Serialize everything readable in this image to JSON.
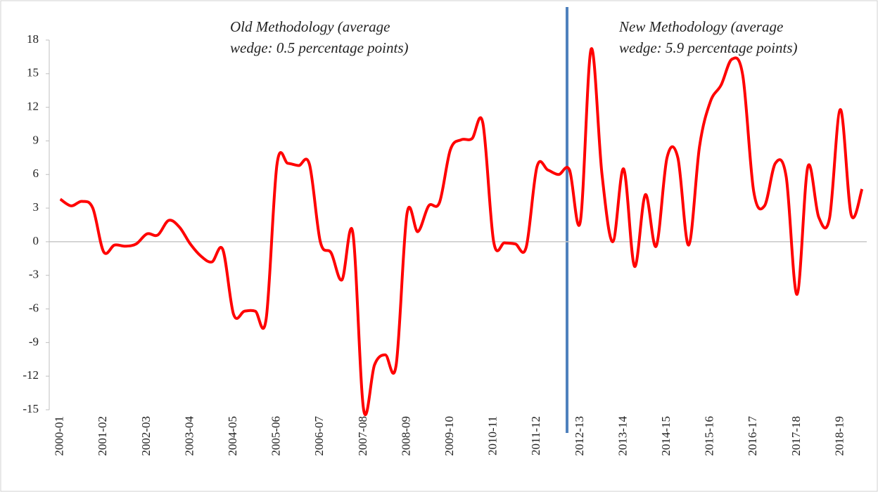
{
  "chart_data": {
    "type": "line",
    "categories": [
      "2000-01",
      null,
      null,
      null,
      "2001-02",
      null,
      null,
      null,
      "2002-03",
      null,
      null,
      null,
      "2003-04",
      null,
      null,
      null,
      "2004-05",
      null,
      null,
      null,
      "2005-06",
      null,
      null,
      null,
      "2006-07",
      null,
      null,
      null,
      "2007-08",
      null,
      null,
      null,
      "2008-09",
      null,
      null,
      null,
      "2009-10",
      null,
      null,
      null,
      "2010-11",
      null,
      null,
      null,
      "2011-12",
      null,
      null,
      null,
      "2012-13",
      null,
      null,
      null,
      "2013-14",
      null,
      null,
      null,
      "2014-15",
      null,
      null,
      null,
      "2015-16",
      null,
      null,
      null,
      "2016-17",
      null,
      null,
      null,
      "2017-18",
      null,
      null,
      null,
      "2018-19",
      null,
      null
    ],
    "series": [
      {
        "color": "#ff0000",
        "values": [
          3.8,
          3.2,
          3.6,
          3.0,
          -0.9,
          -0.3,
          -0.4,
          -0.2,
          0.7,
          0.6,
          1.9,
          1.3,
          -0.2,
          -1.3,
          -1.8,
          -0.7,
          -6.5,
          -6.2,
          -6.2,
          -6.9,
          6.9,
          7.0,
          6.8,
          6.9,
          0.0,
          -1.0,
          -3.4,
          0.8,
          -15.0,
          -11.0,
          -10.1,
          -11.0,
          2.5,
          0.9,
          3.2,
          3.5,
          8.2,
          9.1,
          9.2,
          10.6,
          0.0,
          -0.1,
          -0.2,
          -0.5,
          6.7,
          6.4,
          6.0,
          6.4,
          1.8,
          17.2,
          6.0,
          0.0,
          6.5,
          -2.2,
          4.2,
          -0.4,
          7.5,
          7.5,
          -0.3,
          8.5,
          12.5,
          14.0,
          16.3,
          14.8,
          4.5,
          3.2,
          7.0,
          5.8,
          -4.7,
          6.7,
          2.2,
          2.1,
          11.8,
          2.4,
          4.7
        ]
      }
    ],
    "ylim": [
      -15,
      18
    ],
    "yticks": [
      -15,
      -12,
      -9,
      -6,
      -3,
      0,
      3,
      6,
      9,
      12,
      15,
      18
    ],
    "smooth": true,
    "annotations": [
      [
        "Old Methodology (average",
        "wedge: 0.5 percentage points)"
      ],
      [
        "New Methodology (average",
        "wedge: 5.9 percentage points)"
      ]
    ]
  }
}
